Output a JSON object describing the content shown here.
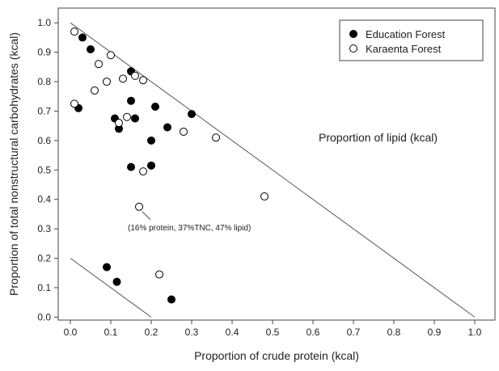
{
  "chart_data": {
    "type": "scatter",
    "xlabel": "Proportion of crude protein (kcal)",
    "ylabel": "Proportion of total nonstructural carbohydrates (kcal)",
    "xlim": [
      -0.03,
      1.05
    ],
    "ylim": [
      -0.01,
      1.05
    ],
    "xticks": [
      0.0,
      0.1,
      0.2,
      0.3,
      0.4,
      0.5,
      0.6,
      0.7,
      0.8,
      0.9,
      1.0
    ],
    "yticks": [
      0.0,
      0.1,
      0.2,
      0.3,
      0.4,
      0.5,
      0.6,
      0.7,
      0.8,
      0.9,
      1.0
    ],
    "xtick_labels": [
      "0.0",
      "0.1",
      "0.2",
      "0.3",
      "0.4",
      "0.5",
      "0.6",
      "0.7",
      "0.8",
      "0.9",
      "1.0"
    ],
    "ytick_labels": [
      "0.0",
      "0.1",
      "0.2",
      "0.3",
      "0.4",
      "0.5",
      "0.6",
      "0.7",
      "0.8",
      "0.9",
      "1.0"
    ],
    "grid": false,
    "legend_position": "top-right",
    "region_label": "Proportion of lipid (kcal)",
    "lines": [
      {
        "x": [
          0.0,
          1.0
        ],
        "y": [
          1.0,
          0.0
        ]
      },
      {
        "x": [
          0.0,
          0.2
        ],
        "y": [
          0.2,
          0.0
        ]
      }
    ],
    "series": [
      {
        "name": "Education Forest",
        "marker": "filled",
        "color": "#000000",
        "points": [
          {
            "x": 0.03,
            "y": 0.95
          },
          {
            "x": 0.05,
            "y": 0.91
          },
          {
            "x": 0.02,
            "y": 0.71
          },
          {
            "x": 0.15,
            "y": 0.835
          },
          {
            "x": 0.15,
            "y": 0.735
          },
          {
            "x": 0.11,
            "y": 0.675
          },
          {
            "x": 0.16,
            "y": 0.675
          },
          {
            "x": 0.12,
            "y": 0.64
          },
          {
            "x": 0.21,
            "y": 0.715
          },
          {
            "x": 0.3,
            "y": 0.69
          },
          {
            "x": 0.24,
            "y": 0.645
          },
          {
            "x": 0.2,
            "y": 0.6
          },
          {
            "x": 0.15,
            "y": 0.51
          },
          {
            "x": 0.2,
            "y": 0.515
          },
          {
            "x": 0.09,
            "y": 0.17
          },
          {
            "x": 0.115,
            "y": 0.12
          },
          {
            "x": 0.25,
            "y": 0.06
          }
        ]
      },
      {
        "name": "Karaenta Forest",
        "marker": "open",
        "color": "#000000",
        "points": [
          {
            "x": 0.01,
            "y": 0.97
          },
          {
            "x": 0.1,
            "y": 0.89
          },
          {
            "x": 0.07,
            "y": 0.86
          },
          {
            "x": 0.13,
            "y": 0.81
          },
          {
            "x": 0.16,
            "y": 0.82
          },
          {
            "x": 0.18,
            "y": 0.805
          },
          {
            "x": 0.09,
            "y": 0.8
          },
          {
            "x": 0.06,
            "y": 0.77
          },
          {
            "x": 0.01,
            "y": 0.725
          },
          {
            "x": 0.14,
            "y": 0.68
          },
          {
            "x": 0.12,
            "y": 0.66
          },
          {
            "x": 0.28,
            "y": 0.63
          },
          {
            "x": 0.36,
            "y": 0.61
          },
          {
            "x": 0.18,
            "y": 0.495
          },
          {
            "x": 0.48,
            "y": 0.41
          },
          {
            "x": 0.17,
            "y": 0.375
          },
          {
            "x": 0.22,
            "y": 0.145
          }
        ]
      }
    ],
    "annotations": [
      {
        "text": "(16% protein, 37%TNC, 47% lipid)",
        "x": 0.17,
        "y": 0.375
      }
    ]
  }
}
